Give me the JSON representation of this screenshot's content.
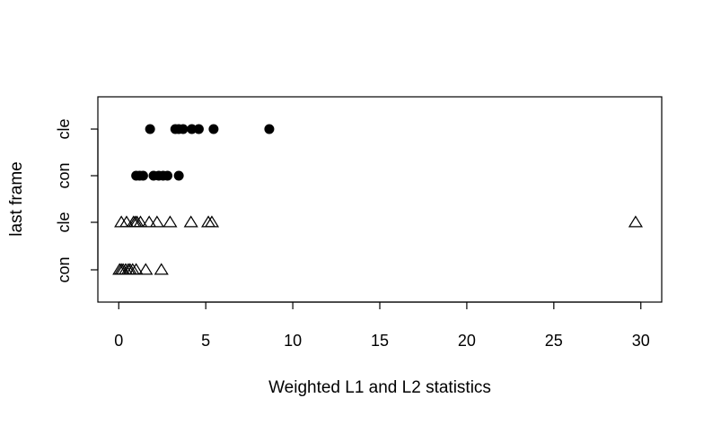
{
  "chart_data": {
    "type": "scatter",
    "title": "",
    "xlabel": "Weighted L1 and L2 statistics",
    "ylabel": "last frame",
    "xlim": [
      -1.2,
      31.2
    ],
    "x_ticks": [
      0,
      5,
      10,
      15,
      20,
      25,
      30
    ],
    "x_tick_labels": [
      "0",
      "5",
      "10",
      "15",
      "20",
      "25",
      "30"
    ],
    "categories": [
      "con",
      "cle",
      "con",
      "cle"
    ],
    "series": [
      {
        "marker": "open-triangle",
        "points": [
          {
            "y": 0,
            "x": 0.05
          },
          {
            "y": 0,
            "x": 0.15
          },
          {
            "y": 0,
            "x": 0.25
          },
          {
            "y": 0,
            "x": 0.4
          },
          {
            "y": 0,
            "x": 0.55
          },
          {
            "y": 0,
            "x": 0.65
          },
          {
            "y": 0,
            "x": 0.8
          },
          {
            "y": 0,
            "x": 1.0
          },
          {
            "y": 0,
            "x": 1.55
          },
          {
            "y": 0,
            "x": 2.45
          },
          {
            "y": 1,
            "x": 0.15
          },
          {
            "y": 1,
            "x": 0.45
          },
          {
            "y": 1,
            "x": 0.85
          },
          {
            "y": 1,
            "x": 0.95
          },
          {
            "y": 1,
            "x": 1.05
          },
          {
            "y": 1,
            "x": 1.25
          },
          {
            "y": 1,
            "x": 1.75
          },
          {
            "y": 1,
            "x": 2.2
          },
          {
            "y": 1,
            "x": 2.95
          },
          {
            "y": 1,
            "x": 4.15
          },
          {
            "y": 1,
            "x": 5.15
          },
          {
            "y": 1,
            "x": 5.35
          },
          {
            "y": 1,
            "x": 29.7
          }
        ]
      },
      {
        "marker": "filled-circle",
        "points": [
          {
            "y": 2,
            "x": 1.0
          },
          {
            "y": 2,
            "x": 1.2
          },
          {
            "y": 2,
            "x": 1.4
          },
          {
            "y": 2,
            "x": 2.0
          },
          {
            "y": 2,
            "x": 2.3
          },
          {
            "y": 2,
            "x": 2.55
          },
          {
            "y": 2,
            "x": 2.8
          },
          {
            "y": 2,
            "x": 3.45
          },
          {
            "y": 3,
            "x": 1.8
          },
          {
            "y": 3,
            "x": 3.25
          },
          {
            "y": 3,
            "x": 3.45
          },
          {
            "y": 3,
            "x": 3.7
          },
          {
            "y": 3,
            "x": 4.2
          },
          {
            "y": 3,
            "x": 4.6
          },
          {
            "y": 3,
            "x": 5.45
          },
          {
            "y": 3,
            "x": 8.65
          }
        ]
      }
    ],
    "grid": false,
    "legend": "none",
    "colors": {
      "marker": "#000000",
      "background": "#ffffff"
    }
  }
}
